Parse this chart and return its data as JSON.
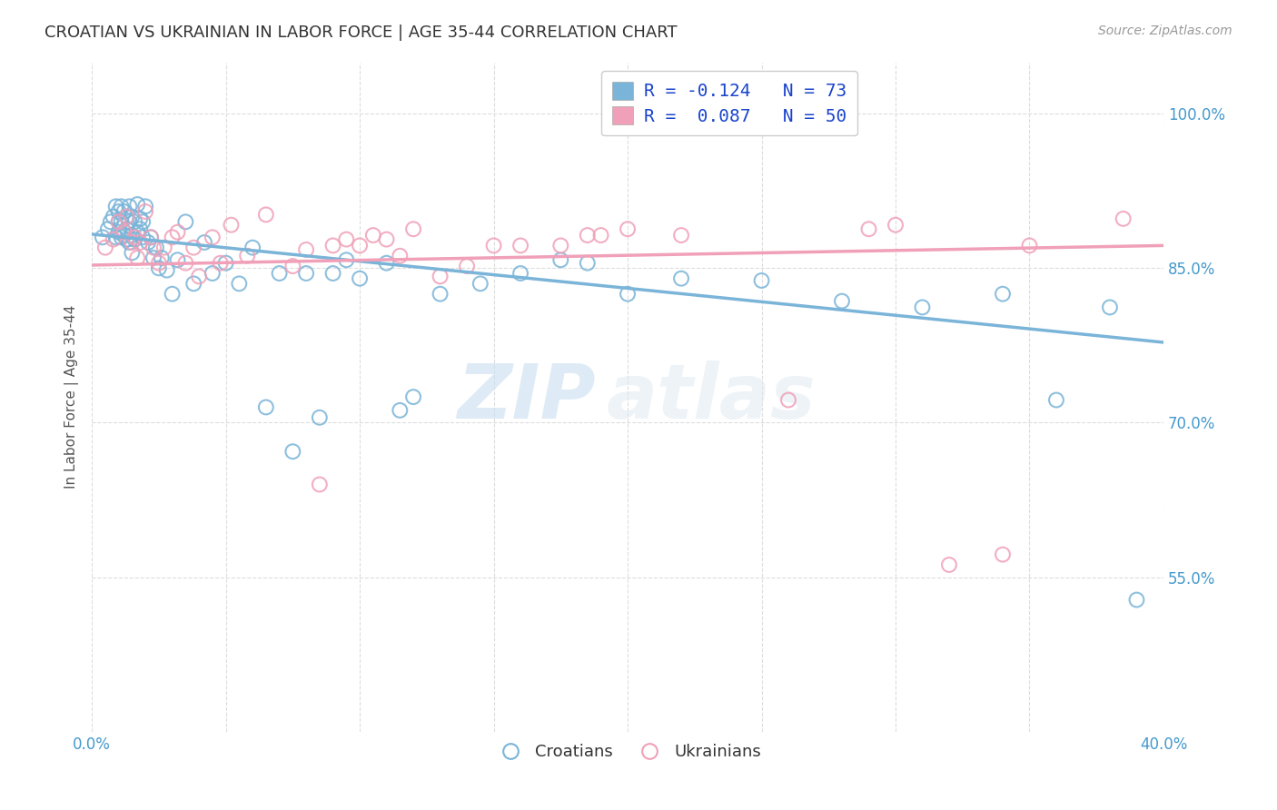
{
  "title": "CROATIAN VS UKRAINIAN IN LABOR FORCE | AGE 35-44 CORRELATION CHART",
  "source": "Source: ZipAtlas.com",
  "ylabel_label": "In Labor Force | Age 35-44",
  "xlim": [
    0.0,
    0.4
  ],
  "ylim": [
    0.4,
    1.05
  ],
  "ytick_positions": [
    0.55,
    0.7,
    0.85,
    1.0
  ],
  "ytick_labels": [
    "55.0%",
    "70.0%",
    "85.0%",
    "100.0%"
  ],
  "xtick_positions": [
    0.0,
    0.05,
    0.1,
    0.15,
    0.2,
    0.25,
    0.3,
    0.35,
    0.4
  ],
  "xtick_labels": [
    "0.0%",
    "",
    "",
    "",
    "",
    "",
    "",
    "",
    "40.0%"
  ],
  "blue_color": "#7ab4d8",
  "pink_color": "#f0a0b8",
  "blue_label": "Croatians",
  "pink_label": "Ukrainians",
  "legend_line1": "R = -0.124   N = 73",
  "legend_line2": "R =  0.087   N = 50",
  "watermark_zip": "ZIP",
  "watermark_atlas": "atlas",
  "blue_scatter_x": [
    0.004,
    0.006,
    0.007,
    0.008,
    0.009,
    0.009,
    0.01,
    0.01,
    0.01,
    0.011,
    0.011,
    0.011,
    0.012,
    0.012,
    0.013,
    0.013,
    0.013,
    0.014,
    0.014,
    0.014,
    0.015,
    0.015,
    0.015,
    0.016,
    0.016,
    0.017,
    0.017,
    0.018,
    0.018,
    0.019,
    0.019,
    0.02,
    0.021,
    0.022,
    0.023,
    0.024,
    0.025,
    0.026,
    0.028,
    0.03,
    0.032,
    0.035,
    0.038,
    0.042,
    0.045,
    0.05,
    0.055,
    0.06,
    0.065,
    0.07,
    0.075,
    0.08,
    0.085,
    0.09,
    0.095,
    0.1,
    0.11,
    0.115,
    0.12,
    0.13,
    0.145,
    0.16,
    0.175,
    0.185,
    0.2,
    0.22,
    0.25,
    0.28,
    0.31,
    0.34,
    0.36,
    0.38,
    0.39
  ],
  "blue_scatter_y": [
    0.88,
    0.888,
    0.895,
    0.9,
    0.88,
    0.91,
    0.885,
    0.895,
    0.905,
    0.88,
    0.895,
    0.91,
    0.882,
    0.905,
    0.878,
    0.888,
    0.9,
    0.875,
    0.895,
    0.91,
    0.865,
    0.882,
    0.9,
    0.878,
    0.895,
    0.885,
    0.912,
    0.888,
    0.898,
    0.88,
    0.895,
    0.91,
    0.875,
    0.88,
    0.86,
    0.87,
    0.85,
    0.86,
    0.848,
    0.825,
    0.858,
    0.895,
    0.835,
    0.875,
    0.845,
    0.855,
    0.835,
    0.87,
    0.715,
    0.845,
    0.672,
    0.845,
    0.705,
    0.845,
    0.858,
    0.84,
    0.855,
    0.712,
    0.725,
    0.825,
    0.835,
    0.845,
    0.858,
    0.855,
    0.825,
    0.84,
    0.838,
    0.818,
    0.812,
    0.825,
    0.722,
    0.812,
    0.528
  ],
  "pink_scatter_x": [
    0.005,
    0.008,
    0.01,
    0.012,
    0.013,
    0.015,
    0.016,
    0.017,
    0.018,
    0.02,
    0.022,
    0.023,
    0.025,
    0.027,
    0.03,
    0.032,
    0.035,
    0.038,
    0.04,
    0.045,
    0.048,
    0.052,
    0.058,
    0.065,
    0.075,
    0.08,
    0.085,
    0.09,
    0.095,
    0.1,
    0.105,
    0.11,
    0.115,
    0.12,
    0.13,
    0.14,
    0.15,
    0.16,
    0.175,
    0.185,
    0.19,
    0.2,
    0.22,
    0.26,
    0.29,
    0.3,
    0.32,
    0.34,
    0.35,
    0.385
  ],
  "pink_scatter_y": [
    0.87,
    0.878,
    0.895,
    0.885,
    0.9,
    0.875,
    0.88,
    0.86,
    0.875,
    0.905,
    0.88,
    0.87,
    0.855,
    0.87,
    0.88,
    0.885,
    0.855,
    0.87,
    0.842,
    0.88,
    0.855,
    0.892,
    0.862,
    0.902,
    0.852,
    0.868,
    0.64,
    0.872,
    0.878,
    0.872,
    0.882,
    0.878,
    0.862,
    0.888,
    0.842,
    0.852,
    0.872,
    0.872,
    0.872,
    0.882,
    0.882,
    0.888,
    0.882,
    0.722,
    0.888,
    0.892,
    0.562,
    0.572,
    0.872,
    0.898
  ],
  "blue_line_x": [
    0.0,
    0.4
  ],
  "blue_line_y": [
    0.883,
    0.778
  ],
  "pink_line_x": [
    0.0,
    0.4
  ],
  "pink_line_y": [
    0.853,
    0.872
  ],
  "background_color": "#ffffff",
  "grid_color": "#dddddd",
  "title_color": "#333333",
  "axis_tick_color": "#4499cc",
  "marker_size": 130,
  "marker_linewidth": 1.5
}
